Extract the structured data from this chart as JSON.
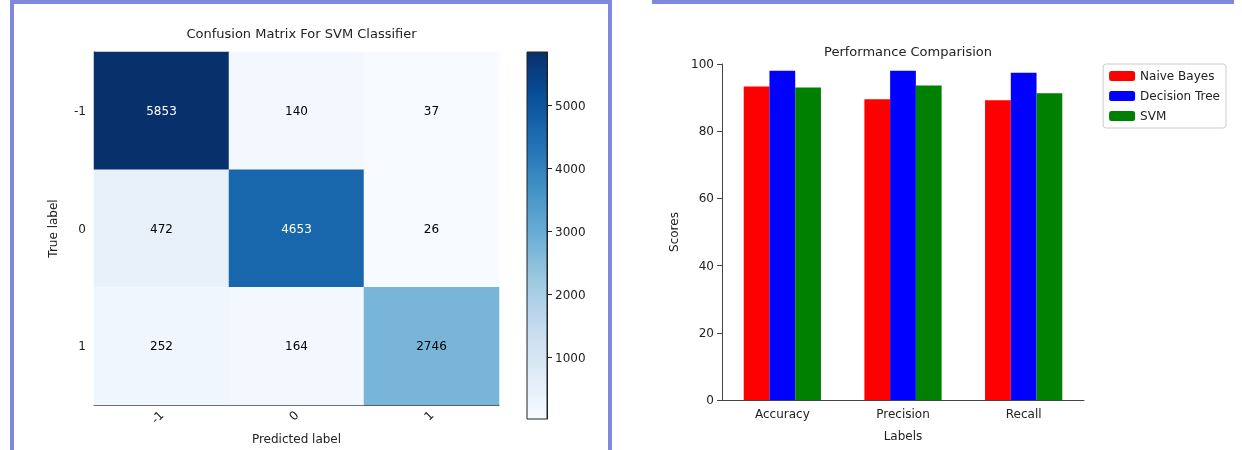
{
  "chart_data": [
    {
      "type": "heatmap",
      "title": "Confusion Matrix For SVM Classifier",
      "xlabel": "Predicted label",
      "ylabel": "True label",
      "categories": [
        "-1",
        "0",
        "1"
      ],
      "y_categories": [
        "-1",
        "0",
        "1"
      ],
      "cells": [
        [
          5853,
          140,
          37
        ],
        [
          472,
          4653,
          26
        ],
        [
          252,
          164,
          2746
        ]
      ],
      "clim": [
        26,
        5853
      ],
      "cticks": [
        1000,
        2000,
        3000,
        4000,
        5000
      ],
      "data_labels": true
    },
    {
      "type": "bar",
      "title": "Performance Comparision",
      "xlabel": "Labels",
      "ylabel": "Scores",
      "categories": [
        "Accuracy",
        "Precision",
        "Recall"
      ],
      "series": [
        {
          "name": "Naive Bayes",
          "color": "#ff0000",
          "values": [
            93.3,
            89.5,
            89.2
          ]
        },
        {
          "name": "Decision Tree",
          "color": "#0000ff",
          "values": [
            98,
            98,
            97.4
          ]
        },
        {
          "name": "SVM",
          "color": "#008000",
          "values": [
            93,
            93.6,
            91.3
          ]
        }
      ],
      "ylim": [
        0,
        100
      ],
      "yticks": [
        0,
        20,
        40,
        60,
        80,
        100
      ],
      "grid": false,
      "legend": "top right"
    }
  ]
}
